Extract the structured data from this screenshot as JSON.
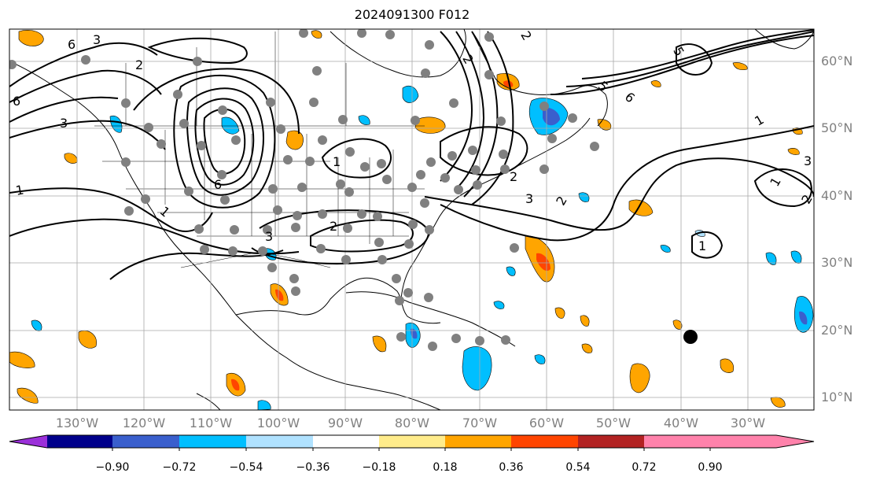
{
  "title": "2024091300 F012",
  "lat_labels": [
    "60°N",
    "50°N",
    "40°N",
    "30°N",
    "20°N",
    "10°N"
  ],
  "lon_labels": [
    "130°W",
    "120°W",
    "110°W",
    "100°W",
    "90°W",
    "80°W",
    "70°W",
    "60°W",
    "50°W",
    "40°W",
    "30°W"
  ],
  "contour_labels": [
    "1",
    "2",
    "3",
    "5",
    "6"
  ],
  "colorbar": {
    "ticks": [
      "−0.90",
      "−0.72",
      "−0.54",
      "−0.36",
      "−0.18",
      "0.18",
      "0.36",
      "0.54",
      "0.72",
      "0.90"
    ],
    "colors": [
      "#9b30d9",
      "#00008b",
      "#3a5fcd",
      "#00bfff",
      "#b0e2ff",
      "#ffffff",
      "#ffec8b",
      "#ffa500",
      "#ff4500",
      "#b22222",
      "#ff82ab"
    ]
  },
  "colors": {
    "contour": "#000000",
    "grid": "#a9a9a9",
    "station_dot": "#808080",
    "storm_marker": "#000000"
  }
}
